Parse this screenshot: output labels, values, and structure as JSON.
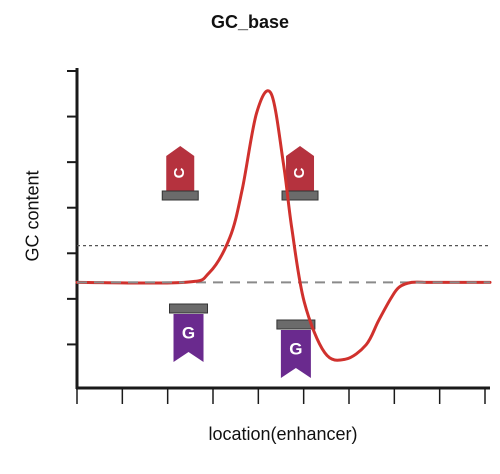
{
  "chart_data": {
    "type": "line",
    "title": "GC_base",
    "xlabel": "location(enhancer)",
    "ylabel": "GC content",
    "x_ticks": 10,
    "y_ticks": 7,
    "grid": false,
    "reference_lines": [
      {
        "style": "dotted",
        "y": 0.445
      },
      {
        "style": "dashed",
        "y": 0.33
      }
    ],
    "series": [
      {
        "color": "#d0312d",
        "dash_overlay_color": "#8a8a8a",
        "x": [
          0,
          0.26,
          0.32,
          0.37,
          0.4,
          0.435,
          0.47,
          0.5,
          0.52,
          0.55,
          0.6,
          0.65,
          0.7,
          0.73,
          0.76,
          0.78,
          0.81,
          0.85,
          0.89,
          1.0
        ],
        "y": [
          0.33,
          0.33,
          0.36,
          0.47,
          0.62,
          0.86,
          0.92,
          0.7,
          0.5,
          0.27,
          0.11,
          0.09,
          0.135,
          0.21,
          0.28,
          0.315,
          0.33,
          0.33,
          0.33,
          0.33
        ]
      }
    ],
    "markers": [
      {
        "letter": "C",
        "kind": "pointing-up",
        "color": "#b5323e",
        "x": 0.25,
        "y": 0.6
      },
      {
        "letter": "C",
        "kind": "pointing-up",
        "color": "#b5323e",
        "x": 0.54,
        "y": 0.6
      },
      {
        "letter": "G",
        "kind": "pointing-down",
        "color": "#6a2a8e",
        "x": 0.27,
        "y": 0.25
      },
      {
        "letter": "G",
        "kind": "pointing-down",
        "color": "#6a2a8e",
        "x": 0.53,
        "y": 0.2
      }
    ]
  }
}
